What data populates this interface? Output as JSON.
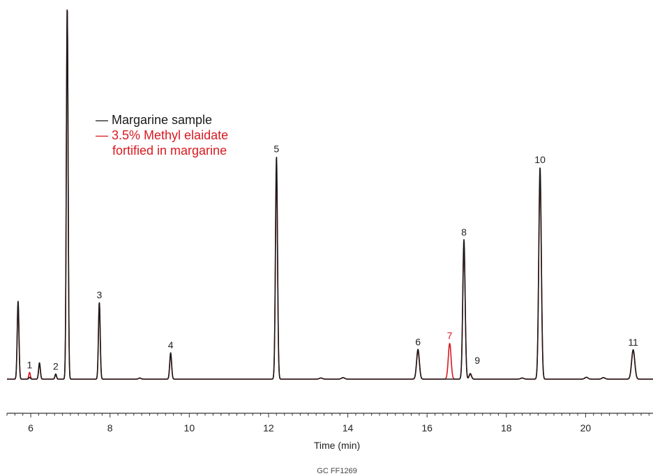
{
  "chart_data": {
    "type": "line",
    "title": "",
    "xlabel": "Time (min)",
    "ylabel": "",
    "xlim": [
      5.4,
      21.7
    ],
    "ylim": [
      0,
      100
    ],
    "x_ticks": [
      "6",
      "8",
      "10",
      "12",
      "14",
      "16",
      "18",
      "20"
    ],
    "grid": false,
    "legend_position": "upper-left",
    "colors": {
      "margarine": "#1a1a1a",
      "fortified": "#d71920"
    },
    "series": [
      {
        "key": "margarine",
        "legend": [
          "— Margarine sample"
        ],
        "color": "#1a1a1a"
      },
      {
        "key": "fortified",
        "legend": [
          "— 3.5% Methyl elaidate",
          "fortified in margarine"
        ],
        "color": "#d71920"
      }
    ],
    "peaks": [
      {
        "t": 5.68,
        "margarine": 21.0,
        "fortified": 20.0,
        "w": 0.022
      },
      {
        "t": 5.97,
        "margarine": 0.5,
        "fortified": 1.8,
        "w": 0.02,
        "label": "1"
      },
      {
        "t": 6.22,
        "margarine": 4.4,
        "fortified": 4.0,
        "w": 0.022
      },
      {
        "t": 6.63,
        "margarine": 1.4,
        "fortified": 1.2,
        "w": 0.02,
        "label": "2"
      },
      {
        "t": 6.92,
        "margarine": 100,
        "fortified": 100,
        "w": 0.022
      },
      {
        "t": 7.73,
        "margarine": 20.6,
        "fortified": 20.6,
        "w": 0.022,
        "label": "3"
      },
      {
        "t": 8.75,
        "margarine": 0.3,
        "fortified": 0.3,
        "w": 0.03
      },
      {
        "t": 9.53,
        "margarine": 7.1,
        "fortified": 6.6,
        "w": 0.024,
        "label": "4"
      },
      {
        "t": 12.2,
        "margarine": 59.8,
        "fortified": 56.0,
        "w": 0.026,
        "label": "5"
      },
      {
        "t": 13.32,
        "margarine": 0.3,
        "fortified": 0.3,
        "w": 0.04
      },
      {
        "t": 13.88,
        "margarine": 0.4,
        "fortified": 0.4,
        "w": 0.04
      },
      {
        "t": 15.77,
        "margarine": 8.0,
        "fortified": 7.5,
        "w": 0.035,
        "label": "6"
      },
      {
        "t": 16.57,
        "margarine": 0.0,
        "fortified": 9.6,
        "w": 0.035,
        "label": "7"
      },
      {
        "t": 16.93,
        "margarine": 37.5,
        "fortified": 35.5,
        "w": 0.03,
        "label": "8"
      },
      {
        "t": 17.09,
        "margarine": 1.5,
        "fortified": 1.3,
        "w": 0.03,
        "label": "9"
      },
      {
        "t": 18.4,
        "margarine": 0.3,
        "fortified": 0.3,
        "w": 0.04
      },
      {
        "t": 18.85,
        "margarine": 56.9,
        "fortified": 54.5,
        "w": 0.032,
        "label": "10"
      },
      {
        "t": 20.02,
        "margarine": 0.5,
        "fortified": 0.5,
        "w": 0.04
      },
      {
        "t": 20.45,
        "margarine": 0.4,
        "fortified": 0.4,
        "w": 0.04
      },
      {
        "t": 21.2,
        "margarine": 7.9,
        "fortified": 7.7,
        "w": 0.04,
        "label": "11"
      }
    ]
  },
  "footer": {
    "code": "GC  FF1269"
  }
}
